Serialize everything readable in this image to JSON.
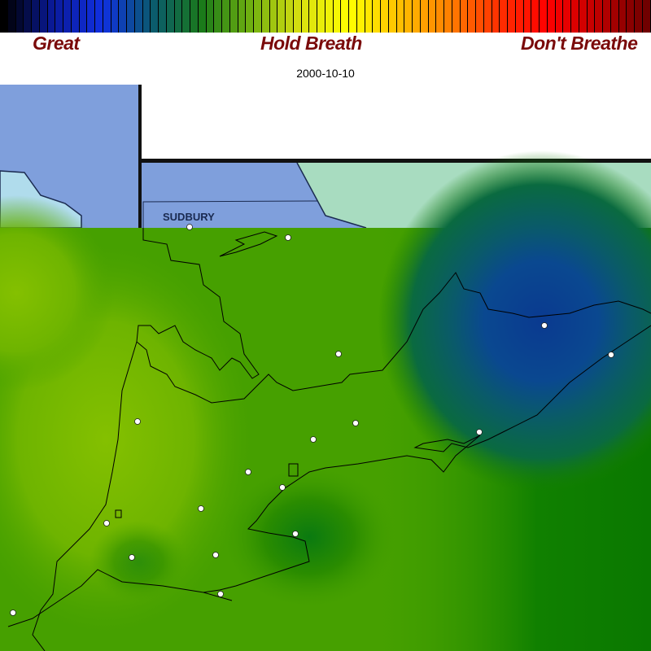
{
  "legend": {
    "labels": {
      "low": "Great",
      "mid": "Hold Breath",
      "high": "Don't Breathe"
    },
    "color_stops": [
      "#000000",
      "#0a1a9a",
      "#1030e0",
      "#0a5a70",
      "#1a7a1a",
      "#70b010",
      "#d8e010",
      "#ffff00",
      "#ffc000",
      "#ff8000",
      "#ff3000",
      "#ff0000",
      "#c00000",
      "#700000"
    ]
  },
  "date": "2000-10-10",
  "map": {
    "city_label": "SUDBURY",
    "station_marker": "white-circle",
    "colors": {
      "water": "#7f9fdc",
      "lake_light": "#b0dcec",
      "land_north": "#a8dcc0",
      "field_base": "#46a000",
      "field_high": "#7cbc00",
      "field_low": "#0a3c8c",
      "field_mid": "#1a7a3a"
    }
  }
}
